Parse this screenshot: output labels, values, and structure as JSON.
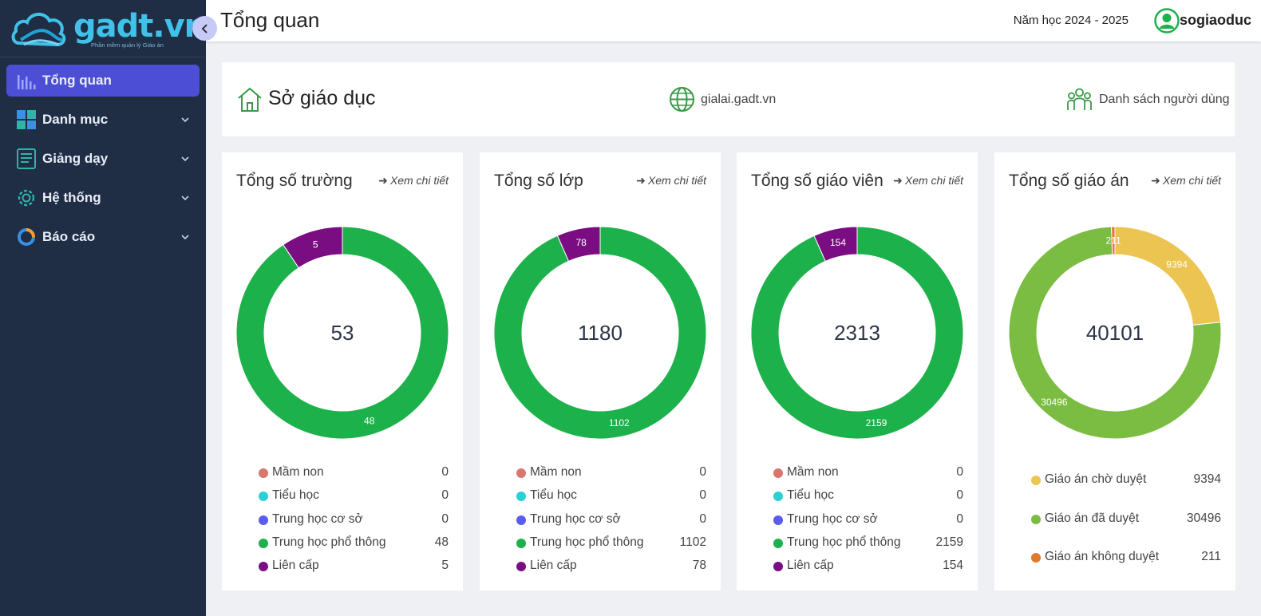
{
  "app": {
    "logo_text": "gadt.vn",
    "logo_tagline": "Phần mềm quản lý Giáo án"
  },
  "sidebar": {
    "items": [
      {
        "label": "Tổng quan",
        "icon": "bar-chart-icon",
        "active": true
      },
      {
        "label": "Danh mục",
        "icon": "grid-icon",
        "active": false
      },
      {
        "label": "Giảng dạy",
        "icon": "document-icon",
        "active": false
      },
      {
        "label": "Hệ thống",
        "icon": "gear-icon",
        "active": false
      },
      {
        "label": "Báo cáo",
        "icon": "donut-report-icon",
        "active": false
      }
    ]
  },
  "header": {
    "title": "Tổng quan",
    "school_year": "Năm học 2024 - 2025",
    "username": "sogiaoduc"
  },
  "info": {
    "department": "Sở giáo dục",
    "website": "gialai.gadt.vn",
    "users_link": "Danh sách người dùng"
  },
  "cards": [
    {
      "title": "Tổng số trường",
      "link": "Xem chi tiết",
      "total": "53",
      "legend": [
        {
          "label": "Mầm non",
          "value": "0",
          "color": "#d9776f"
        },
        {
          "label": "Tiểu học",
          "value": "0",
          "color": "#2ccfd6"
        },
        {
          "label": "Trung học cơ sở",
          "value": "0",
          "color": "#5a5cf0"
        },
        {
          "label": "Trung học phổ thông",
          "value": "48",
          "color": "#1db14b"
        },
        {
          "label": "Liên cấp",
          "value": "5",
          "color": "#7b0d82"
        }
      ]
    },
    {
      "title": "Tổng số lớp",
      "link": "Xem chi tiết",
      "total": "1180",
      "legend": [
        {
          "label": "Mầm non",
          "value": "0",
          "color": "#d9776f"
        },
        {
          "label": "Tiểu học",
          "value": "0",
          "color": "#2ccfd6"
        },
        {
          "label": "Trung học cơ sở",
          "value": "0",
          "color": "#5a5cf0"
        },
        {
          "label": "Trung học phổ thông",
          "value": "1102",
          "color": "#1db14b"
        },
        {
          "label": "Liên cấp",
          "value": "78",
          "color": "#7b0d82"
        }
      ]
    },
    {
      "title": "Tổng số giáo viên",
      "link": "Xem chi tiết",
      "total": "2313",
      "legend": [
        {
          "label": "Mầm non",
          "value": "0",
          "color": "#d9776f"
        },
        {
          "label": "Tiểu học",
          "value": "0",
          "color": "#2ccfd6"
        },
        {
          "label": "Trung học cơ sở",
          "value": "0",
          "color": "#5a5cf0"
        },
        {
          "label": "Trung học phổ thông",
          "value": "2159",
          "color": "#1db14b"
        },
        {
          "label": "Liên cấp",
          "value": "154",
          "color": "#7b0d82"
        }
      ]
    },
    {
      "title": "Tổng số giáo án",
      "link": "Xem chi tiết",
      "total": "40101",
      "legend": [
        {
          "label": "Giáo án chờ duyệt",
          "value": "9394",
          "color": "#ecc451"
        },
        {
          "label": "Giáo án đã duyệt",
          "value": "30496",
          "color": "#7bbd42"
        },
        {
          "label": "Giáo án không duyệt",
          "value": "211",
          "color": "#e07a2c"
        }
      ]
    }
  ],
  "chart_data": [
    {
      "type": "pie",
      "title": "Tổng số trường",
      "center_label": "53",
      "series": [
        {
          "values": [
            5,
            48
          ]
        }
      ],
      "categories": [
        "Liên cấp",
        "Trung học phổ thông"
      ]
    },
    {
      "type": "pie",
      "title": "Tổng số lớp",
      "center_label": "1180",
      "series": [
        {
          "values": [
            78,
            1102
          ]
        }
      ],
      "categories": [
        "Liên cấp",
        "Trung học phổ thông"
      ]
    },
    {
      "type": "pie",
      "title": "Tổng số giáo viên",
      "center_label": "2313",
      "series": [
        {
          "values": [
            154,
            2159
          ]
        }
      ],
      "categories": [
        "Liên cấp",
        "Trung học phổ thông"
      ]
    },
    {
      "type": "pie",
      "title": "Tổng số giáo án",
      "center_label": "40101",
      "series": [
        {
          "values": [
            9394,
            30496,
            211
          ]
        }
      ],
      "categories": [
        "Giáo án chờ duyệt",
        "Giáo án đã duyệt",
        "Giáo án không duyệt"
      ]
    }
  ]
}
